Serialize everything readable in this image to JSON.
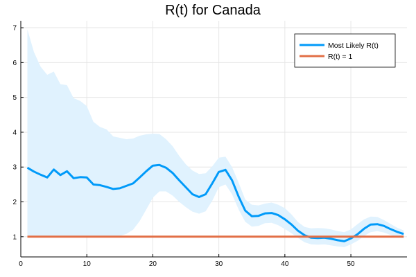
{
  "chart_data": {
    "type": "line",
    "title": "R(t) for Canada",
    "xlabel": "",
    "ylabel": "",
    "xlim": [
      0,
      58.5
    ],
    "ylim": [
      0.42,
      7.2
    ],
    "xticks": [
      0,
      10,
      20,
      30,
      40,
      50
    ],
    "yticks": [
      1,
      2,
      3,
      4,
      5,
      6,
      7
    ],
    "grid": true,
    "legend_position": "top-right",
    "colors": {
      "most_likely": "#009af9",
      "baseline": "#e26f46",
      "band": "#e0f2fe"
    },
    "x": [
      1,
      2,
      3,
      4,
      5,
      6,
      7,
      8,
      9,
      10,
      11,
      12,
      13,
      14,
      15,
      16,
      17,
      18,
      19,
      20,
      21,
      22,
      23,
      24,
      25,
      26,
      27,
      28,
      29,
      30,
      31,
      32,
      33,
      34,
      35,
      36,
      37,
      38,
      39,
      40,
      41,
      42,
      43,
      44,
      45,
      46,
      47,
      48,
      49,
      50,
      51,
      52,
      53,
      54,
      55,
      56,
      57,
      58
    ],
    "series": [
      {
        "name": "Most Likely R(t)",
        "values": [
          2.98,
          2.87,
          2.78,
          2.7,
          2.93,
          2.77,
          2.88,
          2.68,
          2.71,
          2.7,
          2.5,
          2.48,
          2.43,
          2.37,
          2.39,
          2.46,
          2.53,
          2.7,
          2.88,
          3.04,
          3.06,
          2.98,
          2.83,
          2.62,
          2.42,
          2.22,
          2.14,
          2.22,
          2.53,
          2.86,
          2.92,
          2.62,
          2.15,
          1.75,
          1.59,
          1.6,
          1.67,
          1.68,
          1.62,
          1.5,
          1.35,
          1.17,
          1.04,
          0.97,
          0.96,
          0.97,
          0.94,
          0.9,
          0.87,
          0.95,
          1.07,
          1.23,
          1.35,
          1.36,
          1.31,
          1.22,
          1.14,
          1.08
        ]
      },
      {
        "name": "R(t) = 1",
        "values": [
          1,
          1,
          1,
          1,
          1,
          1,
          1,
          1,
          1,
          1,
          1,
          1,
          1,
          1,
          1,
          1,
          1,
          1,
          1,
          1,
          1,
          1,
          1,
          1,
          1,
          1,
          1,
          1,
          1,
          1,
          1,
          1,
          1,
          1,
          1,
          1,
          1,
          1,
          1,
          1,
          1,
          1,
          1,
          1,
          1,
          1,
          1,
          1,
          1,
          1,
          1,
          1,
          1,
          1,
          1,
          1,
          1,
          1
        ]
      }
    ],
    "band": {
      "upper": [
        6.95,
        6.3,
        5.88,
        5.65,
        5.74,
        5.38,
        5.35,
        4.98,
        4.9,
        4.75,
        4.3,
        4.15,
        4.08,
        3.88,
        3.84,
        3.8,
        3.82,
        3.9,
        3.94,
        3.96,
        3.95,
        3.8,
        3.6,
        3.32,
        3.08,
        2.9,
        2.8,
        2.82,
        3.02,
        3.27,
        3.3,
        3.0,
        2.55,
        2.07,
        1.92,
        1.9,
        1.95,
        1.98,
        1.92,
        1.82,
        1.64,
        1.42,
        1.28,
        1.24,
        1.25,
        1.24,
        1.21,
        1.16,
        1.13,
        1.21,
        1.36,
        1.5,
        1.58,
        1.57,
        1.48,
        1.37,
        1.26,
        1.18
      ],
      "lower": [
        1.0,
        1.0,
        1.0,
        1.0,
        1.0,
        1.0,
        1.0,
        1.0,
        1.0,
        1.0,
        1.0,
        1.0,
        1.0,
        1.0,
        1.02,
        1.08,
        1.2,
        1.45,
        1.78,
        2.12,
        2.3,
        2.3,
        2.18,
        2.0,
        1.85,
        1.72,
        1.66,
        1.73,
        2.03,
        2.42,
        2.5,
        2.22,
        1.78,
        1.43,
        1.29,
        1.31,
        1.39,
        1.4,
        1.33,
        1.22,
        1.1,
        0.96,
        0.84,
        0.78,
        0.77,
        0.78,
        0.75,
        0.72,
        0.7,
        0.78,
        0.88,
        1.02,
        1.13,
        1.16,
        1.12,
        1.05,
        0.99,
        0.95
      ]
    }
  }
}
